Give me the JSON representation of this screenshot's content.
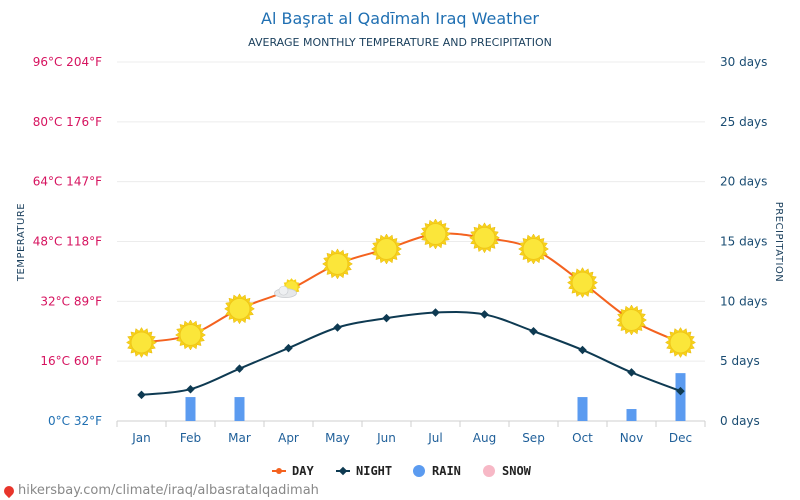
{
  "chart_data": {
    "type": "line",
    "title": "Al Başrat al Qadīmah Iraq Weather",
    "subtitle": "AVERAGE MONTHLY TEMPERATURE AND PRECIPITATION",
    "categories": [
      "Jan",
      "Feb",
      "Mar",
      "Apr",
      "May",
      "Jun",
      "Jul",
      "Aug",
      "Sep",
      "Oct",
      "Nov",
      "Dec"
    ],
    "y_left_label": "TEMPERATURE",
    "y_right_label": "PRECIPITATION",
    "y_left_ticks": [
      "0°C 32°F",
      "16°C 60°F",
      "32°C 89°F",
      "48°C 118°F",
      "64°C 147°F",
      "80°C 176°F",
      "96°C 204°F"
    ],
    "y_right_ticks": [
      "0 days",
      "5 days",
      "10 days",
      "15 days",
      "20 days",
      "25 days",
      "30 days"
    ],
    "ylim_left": [
      0,
      96
    ],
    "ylim_right": [
      0,
      30
    ],
    "series": [
      {
        "name": "DAY",
        "color": "#f4621f",
        "marker": "circle",
        "values": [
          21,
          23,
          30,
          35,
          42,
          46,
          50,
          49,
          46,
          37,
          27,
          21
        ]
      },
      {
        "name": "NIGHT",
        "color": "#0e3a52",
        "marker": "diamond",
        "values": [
          7,
          8.5,
          14,
          19.5,
          25,
          27.5,
          29,
          28.5,
          24,
          19,
          13,
          8
        ]
      }
    ],
    "bars": [
      {
        "name": "RAIN",
        "color": "#5b9bf0",
        "values": [
          0,
          2,
          2,
          0,
          0,
          0,
          0,
          0,
          0,
          2,
          1,
          4
        ]
      },
      {
        "name": "SNOW",
        "color": "#f7b8c6",
        "values": [
          0,
          0,
          0,
          0,
          0,
          0,
          0,
          0,
          0,
          0,
          0,
          0
        ]
      }
    ],
    "weather_icons": [
      "sun",
      "sun",
      "sun",
      "partly-cloudy",
      "sun",
      "sun",
      "sun",
      "sun",
      "sun",
      "sun",
      "sun",
      "sun"
    ],
    "grid": true,
    "legend_position": "bottom-center"
  },
  "footer": {
    "text": "hikersbay.com/climate/iraq/albasratalqadimah"
  }
}
